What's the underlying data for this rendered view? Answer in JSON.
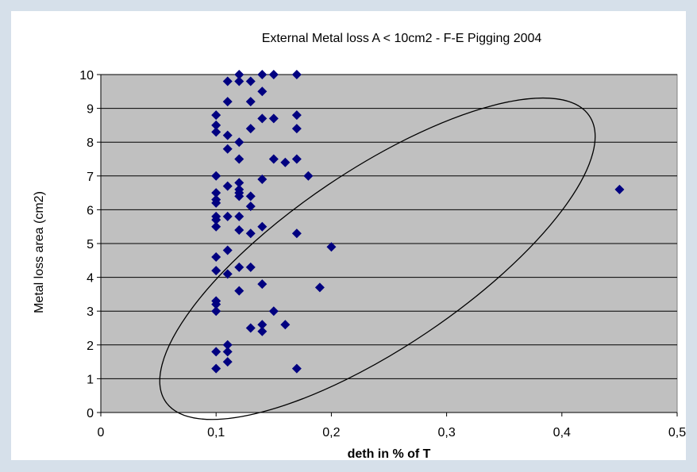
{
  "colors": {
    "page_background": "#d6e0ea",
    "plot_background": "#c0c0c0",
    "gridline": "#000000",
    "marker": "#000080",
    "ellipse": "#000000"
  },
  "chart_data": {
    "type": "scatter",
    "title": "External Metal loss A < 10cm2 - F-E Pigging 2004",
    "xlabel": "deth in % of T",
    "ylabel": "Metal loss area (cm2)",
    "xlim": [
      0,
      0.5
    ],
    "ylim": [
      0,
      10
    ],
    "x_ticks": [
      "0",
      "0,1",
      "0,2",
      "0,3",
      "0,4",
      "0,5"
    ],
    "x_tick_values": [
      0,
      0.1,
      0.2,
      0.3,
      0.4,
      0.5
    ],
    "y_ticks": [
      "0",
      "1",
      "2",
      "3",
      "4",
      "5",
      "6",
      "7",
      "8",
      "9",
      "10"
    ],
    "y_tick_values": [
      0,
      1,
      2,
      3,
      4,
      5,
      6,
      7,
      8,
      9,
      10
    ],
    "grid": "horizontal major gridlines",
    "legend": "none",
    "marker": "diamond",
    "annotation": "ellipse outline around the points in the lower-right of the cluster",
    "series": [
      {
        "x": [
          0.1,
          0.1,
          0.1,
          0.1,
          0.1,
          0.1,
          0.1,
          0.1,
          0.1,
          0.1,
          0.1,
          0.1,
          0.1,
          0.1,
          0.1,
          0.1,
          0.1,
          0.11,
          0.11,
          0.11,
          0.11,
          0.11,
          0.11,
          0.11,
          0.11,
          0.11,
          0.11,
          0.11,
          0.12,
          0.12,
          0.12,
          0.12,
          0.12,
          0.12,
          0.12,
          0.12,
          0.12,
          0.12,
          0.12,
          0.12,
          0.13,
          0.13,
          0.13,
          0.13,
          0.13,
          0.13,
          0.13,
          0.13,
          0.14,
          0.14,
          0.14,
          0.14,
          0.14,
          0.14,
          0.14,
          0.14,
          0.15,
          0.15,
          0.15,
          0.15,
          0.16,
          0.16,
          0.17,
          0.17,
          0.17,
          0.17,
          0.17,
          0.17,
          0.18,
          0.19,
          0.2,
          0.45
        ],
        "y": [
          8.8,
          8.5,
          8.3,
          7.0,
          6.5,
          6.3,
          6.2,
          5.8,
          5.7,
          5.5,
          4.6,
          4.2,
          3.3,
          3.2,
          3.0,
          1.8,
          1.3,
          9.8,
          9.2,
          8.2,
          7.8,
          6.7,
          5.8,
          4.8,
          4.1,
          2.0,
          1.8,
          1.5,
          10.0,
          9.8,
          8.0,
          7.5,
          6.8,
          6.6,
          6.5,
          6.4,
          5.8,
          5.4,
          4.3,
          3.6,
          9.8,
          9.2,
          8.4,
          6.4,
          6.1,
          5.3,
          4.3,
          2.5,
          10.0,
          9.5,
          8.7,
          6.9,
          5.5,
          3.8,
          2.6,
          2.4,
          10.0,
          8.7,
          7.5,
          3.0,
          7.4,
          2.6,
          10.0,
          8.8,
          8.4,
          7.5,
          5.3,
          1.3,
          7.0,
          3.7,
          4.9,
          6.6
        ]
      }
    ]
  }
}
